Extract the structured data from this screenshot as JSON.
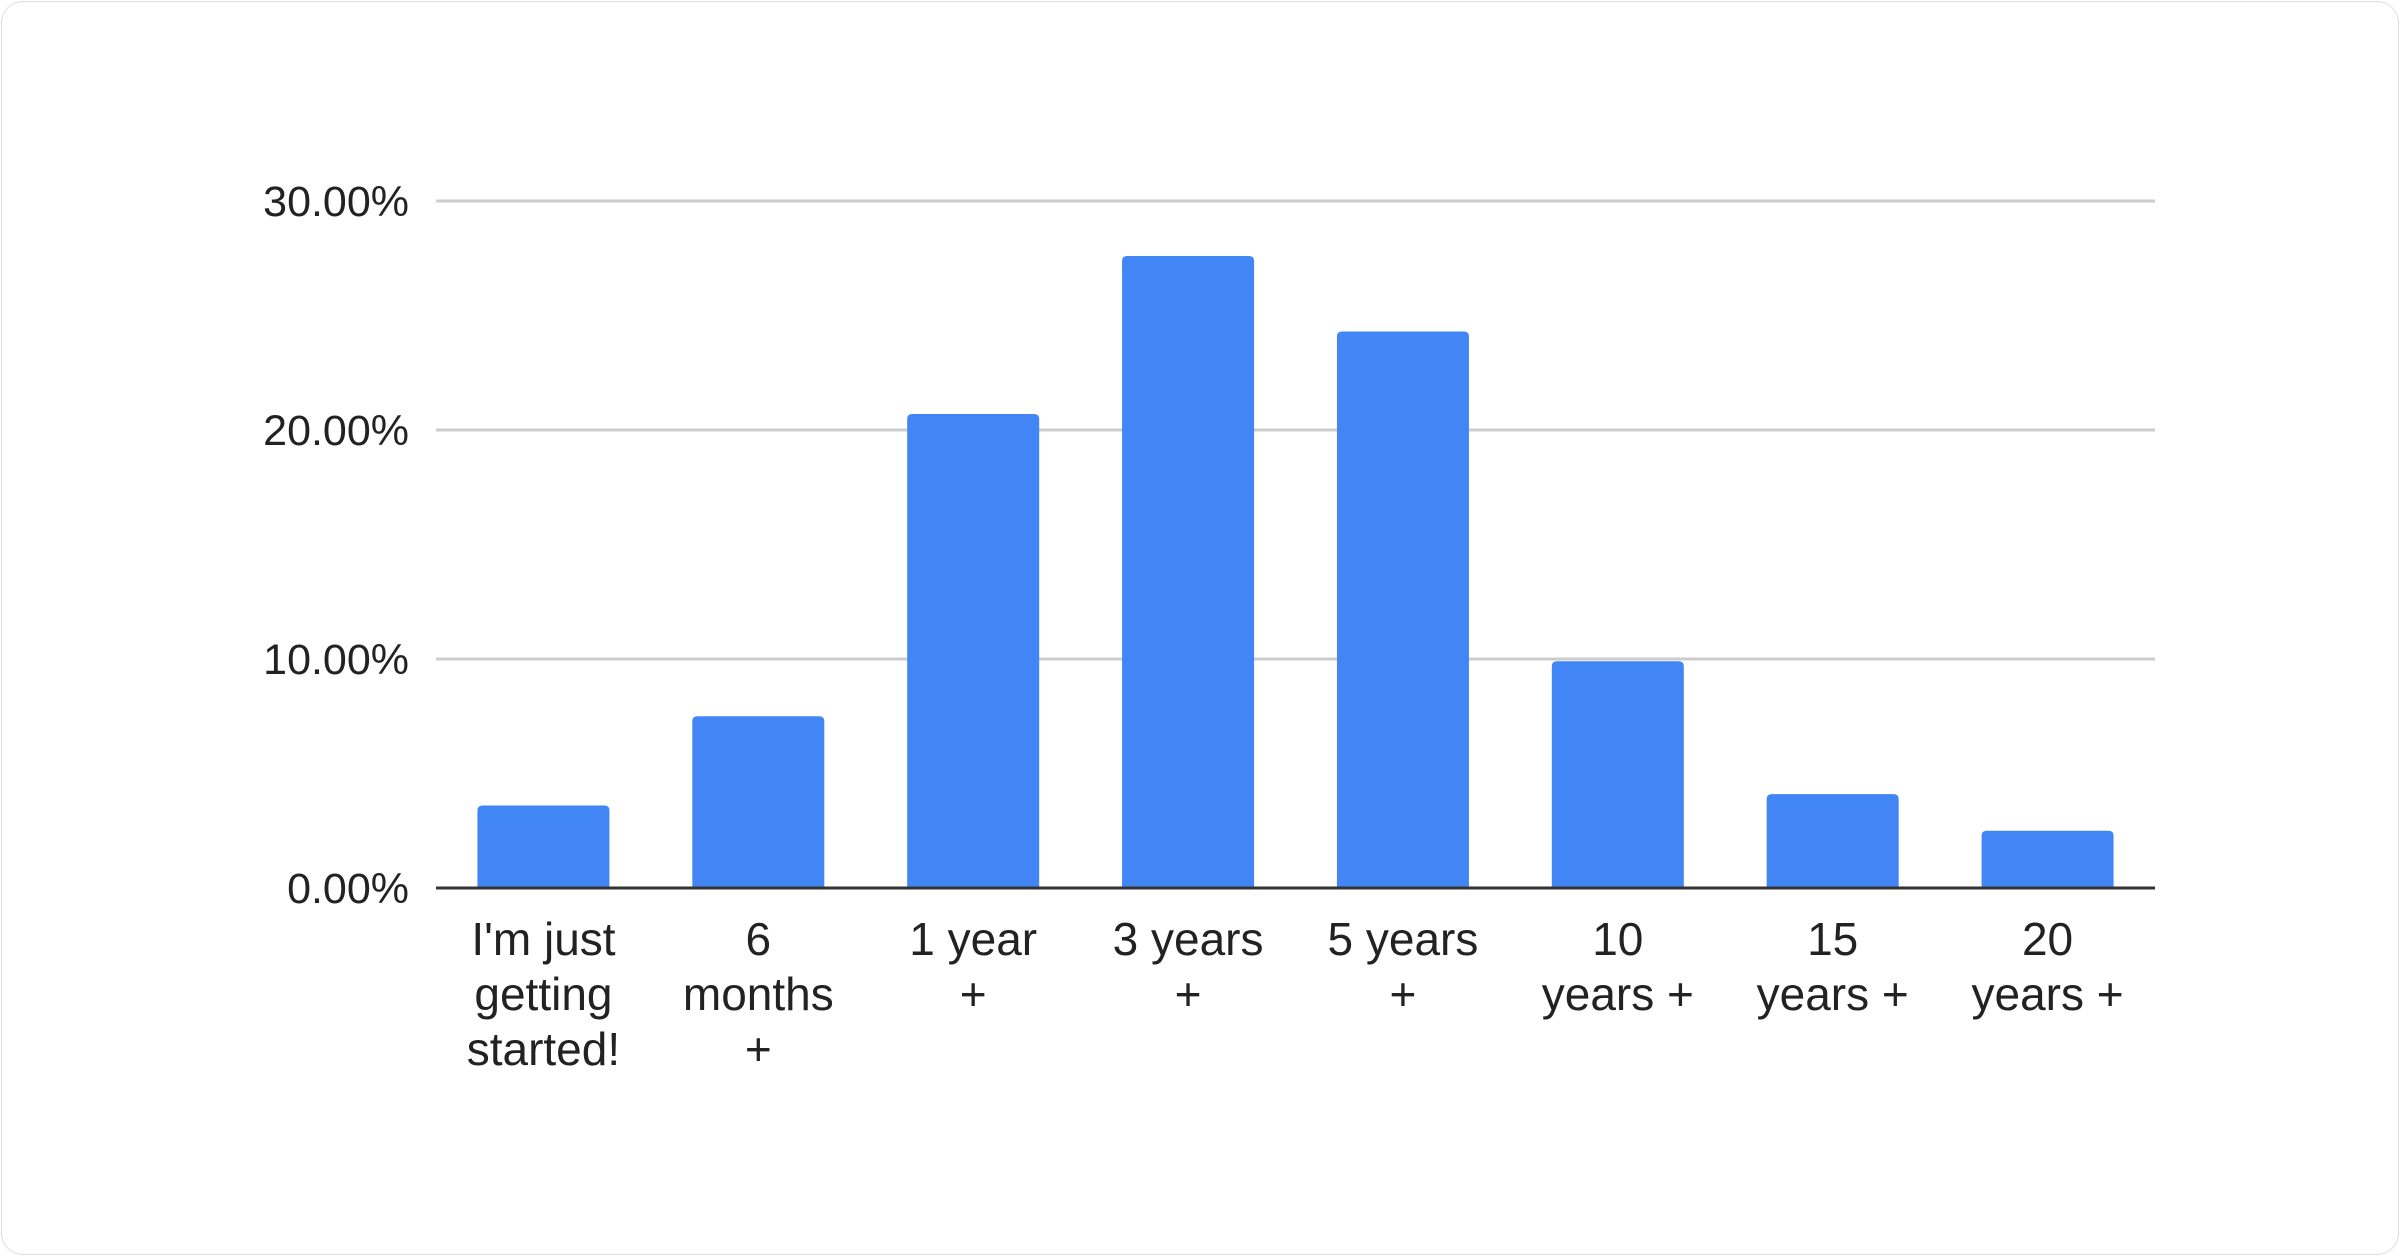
{
  "chart_data": {
    "type": "bar",
    "title": "",
    "xlabel": "",
    "ylabel": "",
    "categories": [
      "I'm just getting started!",
      "6 months +",
      "1 year +",
      "3 years +",
      "5 years +",
      "10 years +",
      "15 years +",
      "20 years +"
    ],
    "values": [
      3.6,
      7.5,
      20.7,
      27.6,
      24.3,
      9.9,
      4.1,
      2.5
    ],
    "unit": "%",
    "ylim": [
      0,
      30
    ],
    "yticks": [
      "0.00%",
      "10.00%",
      "20.00%",
      "30.00%"
    ],
    "ytick_values": [
      0,
      10,
      20,
      30
    ],
    "grid": true,
    "legend": "none",
    "colors": {
      "bar": "#4285f4",
      "grid": "#cccccc",
      "baseline": "#333333",
      "text": "#222222"
    }
  }
}
